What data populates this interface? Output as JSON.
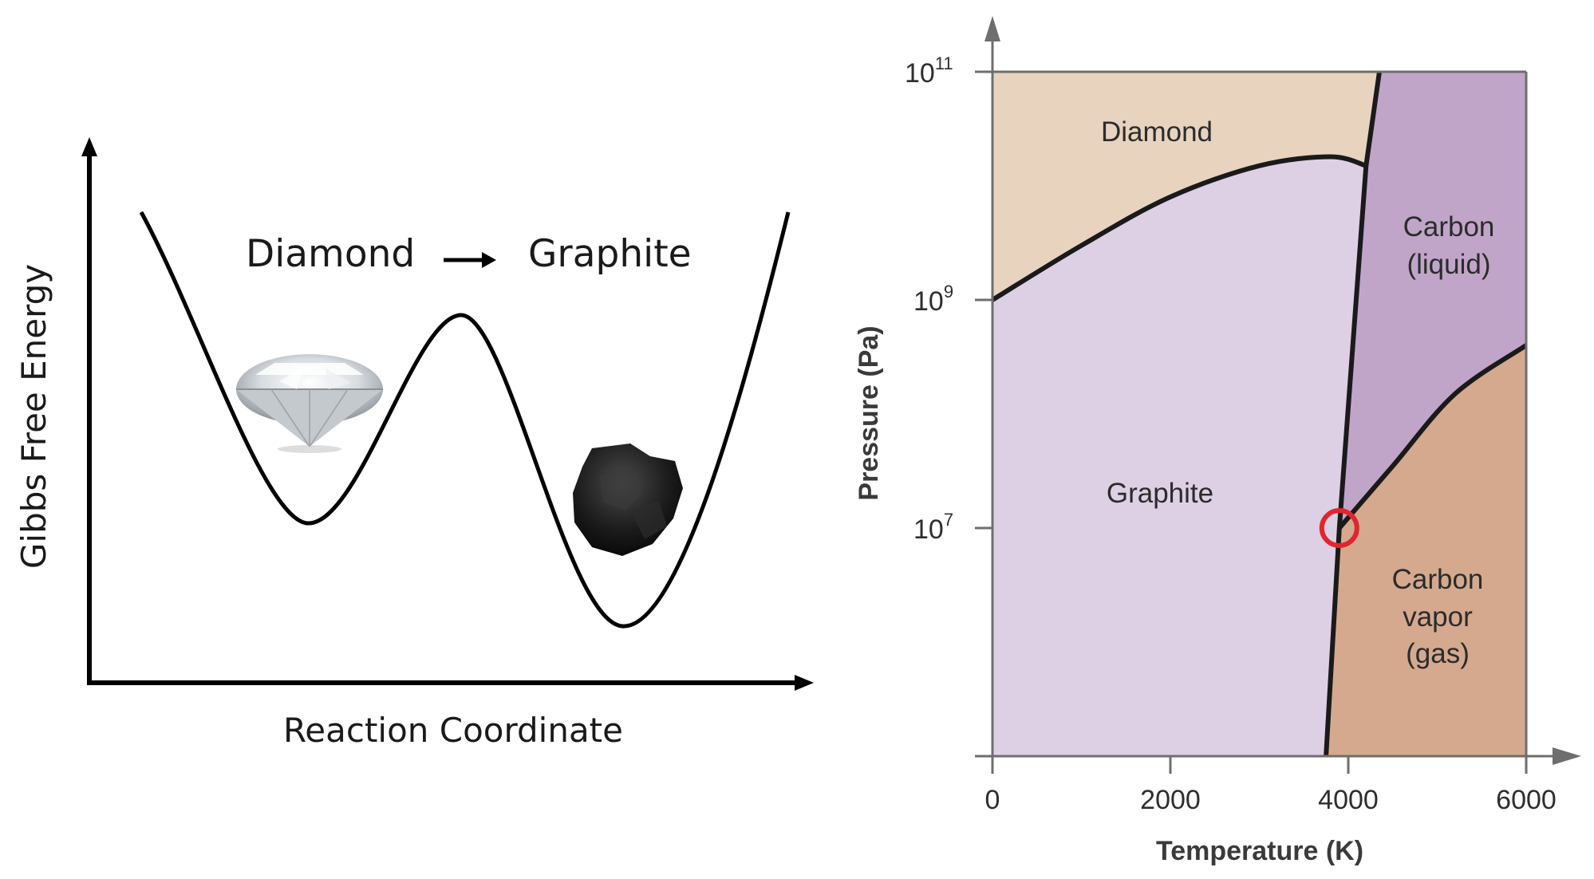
{
  "energy_diagram": {
    "reaction_left": "Diamond",
    "reaction_right": "Graphite",
    "y_axis_label": "Gibbs Free Energy",
    "x_axis_label": "Reaction Coordinate"
  },
  "phase_diagram": {
    "regions": {
      "diamond": "Diamond",
      "graphite": "Graphite",
      "liquid_line1": "Carbon",
      "liquid_line2": "(liquid)",
      "vapor_line1": "Carbon",
      "vapor_line2": "vapor",
      "vapor_line3": "(gas)"
    },
    "y_axis_label": "Pressure (Pa)",
    "x_axis_label": "Temperature (K)",
    "y_ticks": [
      {
        "base": "10",
        "exp": "11"
      },
      {
        "base": "10",
        "exp": "9"
      },
      {
        "base": "10",
        "exp": "7"
      }
    ],
    "x_ticks": [
      "0",
      "2000",
      "4000",
      "6000"
    ]
  },
  "chart_data": {
    "type": "area",
    "x_axis": "temperature_K",
    "y_axis": "pressure_Pa",
    "xlim": [
      0,
      6000
    ],
    "ylim_log10": [
      5,
      11
    ],
    "y_scale": "log",
    "boundaries": [
      {
        "name": "diamond-graphite",
        "points": [
          [
            0,
            1000000000.0
          ],
          [
            1000,
            3000000000.0
          ],
          [
            2000,
            8000000000.0
          ],
          [
            3000,
            15000000000.0
          ],
          [
            3800,
            18000000000.0
          ],
          [
            4200,
            15000000000.0
          ]
        ]
      },
      {
        "name": "graphite-liquid",
        "points": [
          [
            3750,
            100000.0
          ],
          [
            3900,
            10000000.0
          ],
          [
            4200,
            15000000000.0
          ]
        ]
      },
      {
        "name": "liquid-diamond",
        "points": [
          [
            4200,
            15000000000.0
          ],
          [
            4350,
            100000000000.0
          ]
        ]
      },
      {
        "name": "liquid-vapor",
        "points": [
          [
            3900,
            10000000.0
          ],
          [
            4500,
            35000000.0
          ],
          [
            5200,
            150000000.0
          ],
          [
            6000,
            400000000.0
          ]
        ]
      }
    ],
    "triple_point": {
      "T": 3900,
      "P": 10000000.0
    },
    "colors": {
      "diamond": "#e8d3bf",
      "graphite": "#ddd0e4",
      "liquid": "#c0a5c9",
      "vapor": "#d5a98e",
      "triple_marker": "#e0262e"
    }
  }
}
